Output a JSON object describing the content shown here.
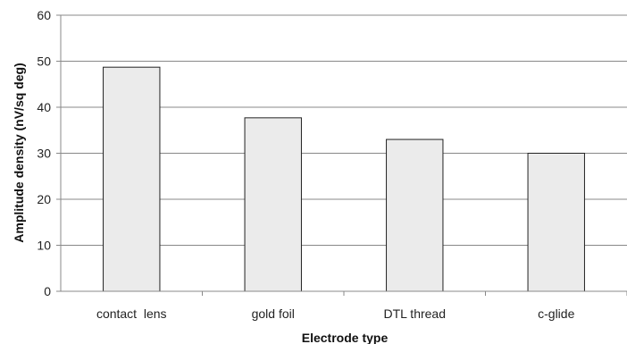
{
  "chart_data": {
    "type": "bar",
    "categories": [
      "contact  lens",
      "gold foil",
      "DTL thread",
      "c-glide"
    ],
    "values": [
      48.7,
      37.7,
      33.0,
      30.0
    ],
    "title": "",
    "xlabel": "Electrode type",
    "ylabel": "Amplitude density (nV/sq deg)",
    "ylim": [
      0,
      60
    ],
    "yticks": [
      0,
      10,
      20,
      30,
      40,
      50,
      60
    ],
    "grid": true,
    "legend": "none",
    "colors": {
      "bar_fill": "#ebebeb",
      "bar_stroke": "#222222",
      "grid": "#888888"
    }
  }
}
